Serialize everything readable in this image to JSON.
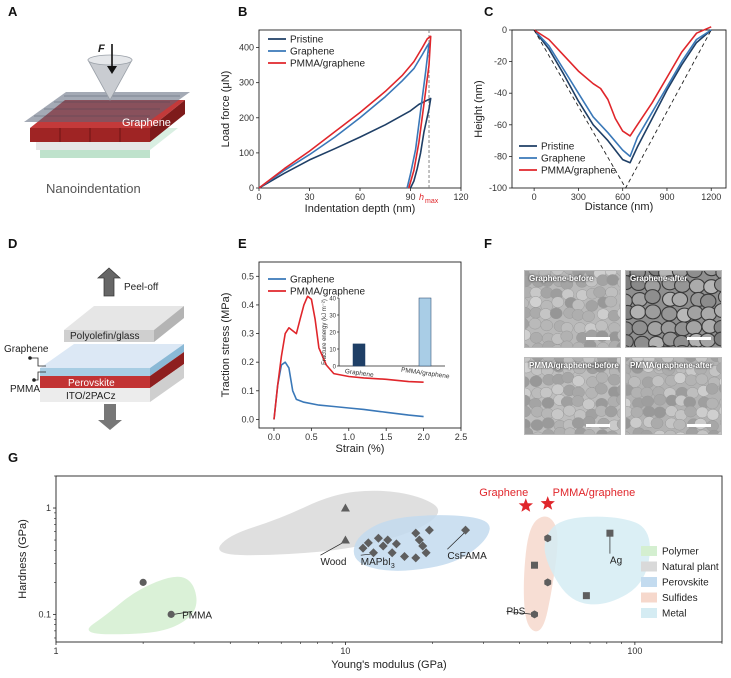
{
  "panels": [
    "A",
    "B",
    "C",
    "D",
    "E",
    "F",
    "G"
  ],
  "panel_a": {
    "force_label": "F",
    "material": "Graphene",
    "caption": "Nanoindentation"
  },
  "panel_d": {
    "peel": "Peel-off",
    "glass": "Polyolefin/glass",
    "graphene": "Graphene",
    "pmma": "PMMA",
    "perovskite": "Perovskite",
    "ito": "ITO/2PACz"
  },
  "panel_f": {
    "images": [
      "Graphene-before",
      "Graphene-after",
      "PMMA/graphene-before",
      "PMMA/graphene-after"
    ]
  },
  "colors": {
    "pristine": "#1f3f66",
    "graphene": "#3a78b8",
    "pmma": "#e0262b",
    "polymer": "#d4efd0",
    "natural": "#d9d9d9",
    "perovskite": "#c3dbef",
    "sulfides": "#f6d8cc",
    "metal": "#d5ecf3"
  },
  "chart_data": [
    {
      "id": "B",
      "type": "line",
      "xlabel": "Indentation depth (nm)",
      "ylabel": "Load force (μN)",
      "xlim": [
        0,
        120
      ],
      "ylim": [
        0,
        450
      ],
      "xticks": [
        0,
        30,
        60,
        90,
        120
      ],
      "yticks": [
        0,
        100,
        200,
        300,
        400
      ],
      "annotation": "h",
      "annotation_sub": "max",
      "annotation_x": 101,
      "series": [
        {
          "name": "Pristine",
          "color": "#1f3f66",
          "x": [
            0,
            15,
            30,
            45,
            60,
            75,
            90,
            95,
            100,
            102,
            101,
            98,
            96,
            94,
            92,
            90
          ],
          "y": [
            0,
            42,
            80,
            112,
            145,
            180,
            220,
            238,
            250,
            255,
            225,
            160,
            100,
            55,
            20,
            0
          ]
        },
        {
          "name": "Graphene",
          "color": "#3a78b8",
          "x": [
            0,
            15,
            30,
            45,
            60,
            75,
            85,
            92,
            97,
            100,
            101,
            99,
            96,
            93,
            90,
            88
          ],
          "y": [
            0,
            50,
            95,
            145,
            200,
            260,
            305,
            340,
            380,
            405,
            412,
            330,
            220,
            110,
            40,
            0
          ]
        },
        {
          "name": "PMMA/graphene",
          "color": "#e0262b",
          "x": [
            0,
            15,
            30,
            45,
            60,
            75,
            85,
            92,
            97,
            100,
            102,
            101,
            98,
            95,
            92,
            89
          ],
          "y": [
            0,
            55,
            105,
            160,
            215,
            275,
            320,
            360,
            400,
            425,
            432,
            350,
            240,
            130,
            50,
            0
          ]
        }
      ]
    },
    {
      "id": "C",
      "type": "line",
      "xlabel": "Distance (nm)",
      "ylabel": "Height (nm)",
      "xlim": [
        -150,
        1300
      ],
      "ylim": [
        -100,
        0
      ],
      "xticks": [
        0,
        300,
        600,
        900,
        1200
      ],
      "yticks": [
        0,
        -20,
        -40,
        -60,
        -80,
        -100
      ],
      "series": [
        {
          "name": "Pristine",
          "color": "#1f3f66",
          "x": [
            0,
            100,
            200,
            300,
            400,
            500,
            600,
            650,
            700,
            800,
            900,
            1000,
            1100,
            1200
          ],
          "y": [
            0,
            -12,
            -28,
            -45,
            -60,
            -70,
            -82,
            -84,
            -74,
            -56,
            -38,
            -22,
            -8,
            0
          ]
        },
        {
          "name": "Graphene",
          "color": "#3a78b8",
          "x": [
            0,
            100,
            200,
            300,
            400,
            500,
            600,
            650,
            700,
            800,
            900,
            1000,
            1100,
            1200
          ],
          "y": [
            0,
            -10,
            -25,
            -40,
            -55,
            -65,
            -76,
            -80,
            -68,
            -52,
            -36,
            -20,
            -6,
            0
          ]
        },
        {
          "name": "PMMA/graphene",
          "color": "#e0262b",
          "x": [
            0,
            100,
            200,
            300,
            400,
            450,
            500,
            550,
            600,
            650,
            700,
            800,
            900,
            1000,
            1100,
            1200
          ],
          "y": [
            0,
            -6,
            -16,
            -26,
            -34,
            -37,
            -44,
            -56,
            -64,
            -67,
            -60,
            -46,
            -30,
            -14,
            -2,
            2
          ]
        },
        {
          "name": "",
          "color": "#222222",
          "dashed": true,
          "x": [
            0,
            620,
            1200
          ],
          "y": [
            0,
            -100,
            0
          ]
        }
      ]
    },
    {
      "id": "E",
      "type": "line",
      "xlabel": "Strain (%)",
      "ylabel": "Traction stress (MPa)",
      "xlim": [
        -0.2,
        2.5
      ],
      "ylim": [
        -0.03,
        0.55
      ],
      "xticks": [
        0,
        0.5,
        1,
        1.5,
        2,
        2.5
      ],
      "xtick_labels": [
        "0.0",
        "0.5",
        "1.0",
        "1.5",
        "2.0",
        "2.5"
      ],
      "yticks": [
        0,
        0.1,
        0.2,
        0.3,
        0.4,
        0.5
      ],
      "ytick_labels": [
        "0.0",
        "0.1",
        "0.2",
        "0.3",
        "0.4",
        "0.5"
      ],
      "series": [
        {
          "name": "Graphene",
          "color": "#3a78b8",
          "x": [
            0,
            0.05,
            0.1,
            0.15,
            0.2,
            0.25,
            0.3,
            0.4,
            0.6,
            0.8,
            1.0,
            1.2,
            1.5,
            1.8,
            2.0
          ],
          "y": [
            0,
            0.12,
            0.19,
            0.2,
            0.18,
            0.1,
            0.07,
            0.06,
            0.05,
            0.045,
            0.04,
            0.035,
            0.025,
            0.015,
            0.01
          ]
        },
        {
          "name": "PMMA/graphene",
          "color": "#e0262b",
          "x": [
            0,
            0.05,
            0.1,
            0.15,
            0.2,
            0.25,
            0.3,
            0.35,
            0.4,
            0.45,
            0.5,
            0.55,
            0.6,
            0.7,
            0.8,
            1.0,
            1.2,
            1.5,
            1.8,
            2.0
          ],
          "y": [
            0,
            0.12,
            0.22,
            0.3,
            0.32,
            0.31,
            0.3,
            0.35,
            0.4,
            0.43,
            0.42,
            0.35,
            0.25,
            0.19,
            0.16,
            0.15,
            0.145,
            0.14,
            0.132,
            0.13
          ]
        }
      ],
      "inset": {
        "type": "bar",
        "ylabel": "Fracture energy (kJ m⁻²)",
        "ylim": [
          0,
          40
        ],
        "yticks": [
          0,
          10,
          20,
          30,
          40
        ],
        "categories": [
          "Graphene",
          "PMMA/graphene"
        ],
        "values": [
          13,
          40
        ],
        "colors": [
          "#1f3f66",
          "#a9cde6"
        ]
      }
    },
    {
      "id": "G",
      "type": "scatter",
      "xlabel": "Young's modulus (GPa)",
      "ylabel": "Hardness (GPa)",
      "xscale": "log",
      "yscale": "log",
      "xlim": [
        1,
        200
      ],
      "ylim": [
        0.055,
        2.0
      ],
      "xticks": [
        1,
        10,
        100
      ],
      "xtick_labels": [
        "1",
        "10",
        "100"
      ],
      "yticks": [
        0.1,
        1
      ],
      "ytick_labels": [
        "0.1",
        "1"
      ],
      "regions": [
        {
          "name": "Polymer",
          "color": "#d4efd0",
          "poly": [
            [
              1.2,
              0.065
            ],
            [
              1.5,
              0.1
            ],
            [
              1.9,
              0.17
            ],
            [
              2.6,
              0.24
            ],
            [
              3.0,
              0.2
            ],
            [
              3.1,
              0.11
            ],
            [
              2.6,
              0.075
            ],
            [
              2.0,
              0.065
            ]
          ]
        },
        {
          "name": "Natural plant",
          "color": "#d9d9d9",
          "poly": [
            [
              3.5,
              0.36
            ],
            [
              3.9,
              0.55
            ],
            [
              6,
              0.8
            ],
            [
              9,
              1.35
            ],
            [
              13,
              1.5
            ],
            [
              18,
              1.3
            ],
            [
              22,
              0.95
            ],
            [
              18,
              0.62
            ],
            [
              11,
              0.42
            ],
            [
              6,
              0.36
            ]
          ]
        },
        {
          "name": "Perovskite",
          "color": "#c3dbef",
          "poly": [
            [
              10.5,
              0.35
            ],
            [
              11,
              0.55
            ],
            [
              14,
              0.8
            ],
            [
              22,
              0.88
            ],
            [
              32,
              0.78
            ],
            [
              31,
              0.5
            ],
            [
              24,
              0.3
            ],
            [
              16,
              0.25
            ],
            [
              12,
              0.27
            ]
          ]
        },
        {
          "name": "Sulfides",
          "color": "#f6d8cc",
          "poly": [
            [
              42,
              0.075
            ],
            [
              41,
              0.2
            ],
            [
              43,
              0.7
            ],
            [
              50,
              0.9
            ],
            [
              55,
              0.6
            ],
            [
              52,
              0.18
            ],
            [
              48,
              0.065
            ]
          ]
        },
        {
          "name": "Metal",
          "color": "#d5ecf3",
          "poly": [
            [
              48,
              0.5
            ],
            [
              55,
              0.8
            ],
            [
              85,
              0.85
            ],
            [
              115,
              0.65
            ],
            [
              110,
              0.2
            ],
            [
              80,
              0.12
            ],
            [
              60,
              0.13
            ],
            [
              50,
              0.28
            ]
          ]
        }
      ],
      "points": [
        {
          "group": "Polymer",
          "marker": "circle",
          "x": 2.0,
          "y": 0.2
        },
        {
          "group": "Polymer",
          "marker": "circle",
          "x": 2.5,
          "y": 0.1
        },
        {
          "group": "Natural plant",
          "marker": "triangle",
          "x": 10,
          "y": 1.0
        },
        {
          "group": "Natural plant",
          "marker": "triangle",
          "x": 10,
          "y": 0.5
        },
        {
          "group": "Perovskite",
          "marker": "diamond",
          "x": 11.5,
          "y": 0.42
        },
        {
          "group": "Perovskite",
          "marker": "diamond",
          "x": 12,
          "y": 0.47
        },
        {
          "group": "Perovskite",
          "marker": "diamond",
          "x": 12.5,
          "y": 0.38
        },
        {
          "group": "Perovskite",
          "marker": "diamond",
          "x": 13,
          "y": 0.52
        },
        {
          "group": "Perovskite",
          "marker": "diamond",
          "x": 13.5,
          "y": 0.44
        },
        {
          "group": "Perovskite",
          "marker": "diamond",
          "x": 14,
          "y": 0.5
        },
        {
          "group": "Perovskite",
          "marker": "diamond",
          "x": 14.5,
          "y": 0.38
        },
        {
          "group": "Perovskite",
          "marker": "diamond",
          "x": 15,
          "y": 0.46
        },
        {
          "group": "Perovskite",
          "marker": "diamond",
          "x": 16,
          "y": 0.35
        },
        {
          "group": "Perovskite",
          "marker": "diamond",
          "x": 17.5,
          "y": 0.58
        },
        {
          "group": "Perovskite",
          "marker": "diamond",
          "x": 18,
          "y": 0.5
        },
        {
          "group": "Perovskite",
          "marker": "diamond",
          "x": 18.5,
          "y": 0.44
        },
        {
          "group": "Perovskite",
          "marker": "diamond",
          "x": 19,
          "y": 0.38
        },
        {
          "group": "Perovskite",
          "marker": "diamond",
          "x": 17.5,
          "y": 0.34
        },
        {
          "group": "Perovskite",
          "marker": "diamond",
          "x": 19.5,
          "y": 0.62
        },
        {
          "group": "Perovskite",
          "marker": "diamond",
          "x": 26,
          "y": 0.62
        },
        {
          "group": "Sulfides",
          "marker": "hexagon",
          "x": 50,
          "y": 0.52
        },
        {
          "group": "Sulfides",
          "marker": "hexagon",
          "x": 50,
          "y": 0.2
        },
        {
          "group": "Sulfides",
          "marker": "hexagon",
          "x": 45,
          "y": 0.1
        },
        {
          "group": "Metal",
          "marker": "square",
          "x": 45,
          "y": 0.29
        },
        {
          "group": "Metal",
          "marker": "square",
          "x": 68,
          "y": 0.15
        },
        {
          "group": "Metal",
          "marker": "square",
          "x": 82,
          "y": 0.58
        },
        {
          "group": "This work",
          "marker": "star",
          "x": 42,
          "y": 1.05
        },
        {
          "group": "This work",
          "marker": "star",
          "x": 50,
          "y": 1.1
        }
      ],
      "annotations": [
        {
          "text": "PMMA",
          "x": 3.0,
          "y": 0.1,
          "tx": 3.0,
          "ty": 0.1,
          "line_to": [
            2.55,
            0.1
          ]
        },
        {
          "text": "Wood",
          "x": 8.2,
          "y": 0.29,
          "line_to": [
            9.9,
            0.48
          ]
        },
        {
          "text": "MAPbI",
          "sub": "3",
          "x": 11.3,
          "y": 0.29,
          "line_to": [
            12.4,
            0.37
          ]
        },
        {
          "text": "CsFAMA",
          "x": 22.5,
          "y": 0.33,
          "line_to": [
            26,
            0.6
          ]
        },
        {
          "text": "PbS",
          "x": 36,
          "y": 0.1,
          "line_to": [
            44.5,
            0.1
          ]
        },
        {
          "text": "Ag",
          "x": 82,
          "y": 0.3,
          "line_to": [
            82,
            0.56
          ]
        },
        {
          "text": "Graphene",
          "x": 29,
          "y": 1.3,
          "color": "#e0262b"
        },
        {
          "text": "PMMA/graphene",
          "x": 52,
          "y": 1.3,
          "color": "#e0262b"
        }
      ],
      "legend": [
        "Polymer",
        "Natural plant",
        "Perovskite",
        "Sulfides",
        "Metal"
      ]
    }
  ]
}
